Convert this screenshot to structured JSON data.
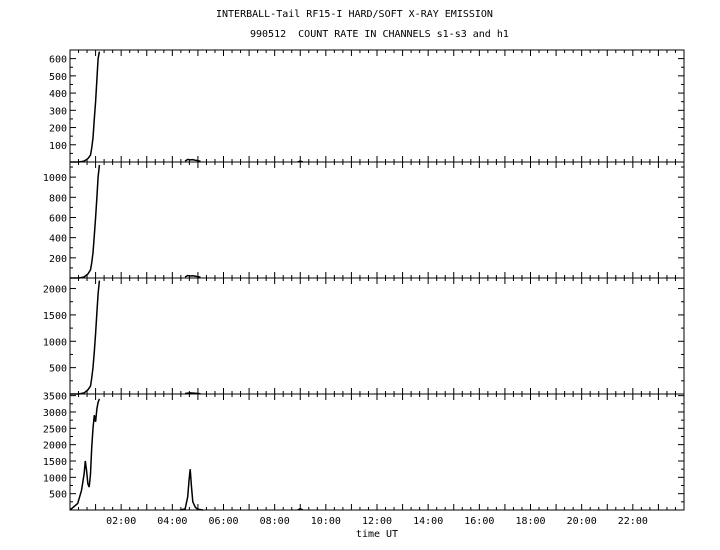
{
  "header": {
    "title": "INTERBALL-Tail RF15-I HARD/SOFT X-RAY EMISSION",
    "subtitle": "990512  COUNT RATE IN CHANNELS s1-s3 and h1"
  },
  "chart_data": {
    "type": "line",
    "title": "INTERBALL-Tail RF15-I HARD/SOFT X-RAY EMISSION",
    "subtitle": "990512  COUNT RATE IN CHANNELS s1-s3 and h1",
    "xlabel": "time UT",
    "xlim": [
      0,
      24
    ],
    "x_tick_labels": [
      "02:00",
      "04:00",
      "06:00",
      "08:00",
      "10:00",
      "12:00",
      "14:00",
      "16:00",
      "18:00",
      "20:00",
      "22:00"
    ],
    "panels": [
      {
        "ylim": [
          0,
          650
        ],
        "y_ticks": [
          100,
          200,
          300,
          400,
          500,
          600
        ],
        "series": [
          {
            "x": [
              0.0,
              0.35,
              0.55,
              0.7,
              0.8,
              0.85,
              0.9,
              0.95,
              1.0,
              1.05,
              1.1,
              1.15
            ],
            "y": [
              0,
              0,
              5,
              20,
              40,
              80,
              140,
              250,
              350,
              480,
              600,
              640
            ]
          },
          {
            "x": [
              4.5,
              4.6,
              4.7,
              4.8,
              4.9,
              5.0,
              5.1
            ],
            "y": [
              5,
              15,
              12,
              14,
              10,
              8,
              4
            ]
          },
          {
            "x": [
              8.9,
              9.0,
              9.1
            ],
            "y": [
              0,
              5,
              0
            ]
          }
        ]
      },
      {
        "ylim": [
          0,
          1150
        ],
        "y_ticks": [
          200,
          400,
          600,
          800,
          1000
        ],
        "series": [
          {
            "x": [
              0.0,
              0.35,
              0.55,
              0.7,
              0.8,
              0.85,
              0.9,
              0.95,
              1.0,
              1.05,
              1.1,
              1.15
            ],
            "y": [
              0,
              0,
              10,
              40,
              80,
              150,
              250,
              420,
              600,
              800,
              1000,
              1120
            ]
          },
          {
            "x": [
              4.5,
              4.6,
              4.7,
              4.8,
              4.9,
              5.0,
              5.1
            ],
            "y": [
              10,
              25,
              20,
              22,
              18,
              14,
              6
            ]
          }
        ]
      },
      {
        "ylim": [
          0,
          2200
        ],
        "y_ticks": [
          500,
          1000,
          1500,
          2000
        ],
        "series": [
          {
            "x": [
              0.0,
              0.35,
              0.55,
              0.7,
              0.8,
              0.85,
              0.9,
              0.95,
              1.0,
              1.05,
              1.1,
              1.15
            ],
            "y": [
              0,
              0,
              20,
              80,
              150,
              300,
              500,
              800,
              1150,
              1550,
              1900,
              2150
            ]
          },
          {
            "x": [
              4.5,
              4.7,
              4.9,
              5.1
            ],
            "y": [
              10,
              20,
              15,
              5
            ]
          }
        ]
      },
      {
        "ylim": [
          0,
          3550
        ],
        "y_ticks": [
          500,
          1000,
          1500,
          2000,
          2500,
          3000,
          3500
        ],
        "series": [
          {
            "x": [
              0.0,
              0.3,
              0.45,
              0.55,
              0.6,
              0.65,
              0.7,
              0.75,
              0.8,
              0.85,
              0.9,
              0.95,
              1.0,
              1.05,
              1.1,
              1.15
            ],
            "y": [
              0,
              200,
              600,
              1100,
              1500,
              1200,
              800,
              700,
              1100,
              1900,
              2500,
              2900,
              2700,
              3100,
              3300,
              3400
            ]
          },
          {
            "x": [
              4.3,
              4.5,
              4.6,
              4.65,
              4.7,
              4.75,
              4.8,
              4.9,
              5.0,
              5.2
            ],
            "y": [
              0,
              30,
              400,
              900,
              1250,
              700,
              250,
              80,
              20,
              0
            ]
          },
          {
            "x": [
              8.9,
              9.0,
              9.1
            ],
            "y": [
              0,
              40,
              0
            ]
          }
        ]
      }
    ]
  }
}
